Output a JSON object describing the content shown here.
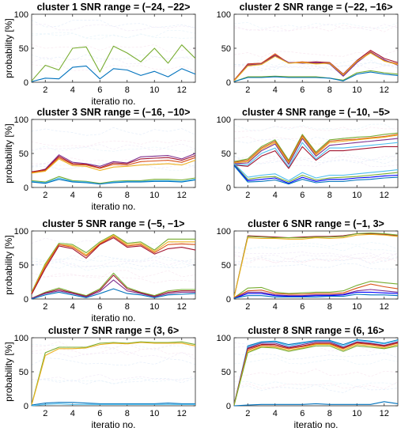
{
  "colors": {
    "blue": "#0072bd",
    "orange": "#d95319",
    "yellow": "#edb120",
    "purple": "#7e2f8e",
    "green": "#77ac30",
    "cyan": "#4dbeee",
    "maroon": "#a2142f",
    "navy": "#0000ff",
    "faint": "#dfe8f5"
  },
  "chart_data": [
    {
      "type": "line",
      "title": "cluster 1 SNR range = (−24, −22>",
      "xlabel": "iteratio no.",
      "ylabel": "probability [%]",
      "xlim": [
        1,
        13
      ],
      "ylim": [
        0,
        100
      ],
      "x_ticks": [
        "2",
        "4",
        "6",
        "8",
        "10",
        "12"
      ],
      "y_ticks": [
        "0",
        "50",
        "100"
      ],
      "series": [
        {
          "color": "#77ac30",
          "values": [
            2,
            25,
            18,
            50,
            52,
            15,
            53,
            43,
            30,
            50,
            28,
            55,
            35
          ]
        },
        {
          "color": "#0072bd",
          "values": [
            1,
            6,
            5,
            22,
            24,
            5,
            20,
            18,
            10,
            16,
            8,
            20,
            12
          ]
        }
      ]
    },
    {
      "type": "line",
      "title": "cluster 2 SNR range = (−22, −16>",
      "xlabel": "",
      "ylabel": "",
      "xlim": [
        1,
        13
      ],
      "ylim": [
        0,
        100
      ],
      "x_ticks": [
        "2",
        "4",
        "6",
        "8",
        "10",
        "12"
      ],
      "y_ticks": [
        "0",
        "50",
        "100"
      ],
      "series": [
        {
          "color": "#a2142f",
          "values": [
            3,
            27,
            28,
            40,
            29,
            29,
            30,
            29,
            12,
            32,
            47,
            35,
            29
          ]
        },
        {
          "color": "#d95319",
          "values": [
            3,
            26,
            28,
            42,
            28,
            30,
            28,
            28,
            10,
            30,
            45,
            32,
            27
          ]
        },
        {
          "color": "#7e2f8e",
          "values": [
            2,
            25,
            27,
            39,
            29,
            28,
            29,
            27,
            9,
            29,
            44,
            33,
            25
          ]
        },
        {
          "color": "#edb120",
          "values": [
            2,
            24,
            26,
            38,
            28,
            29,
            27,
            28,
            11,
            31,
            43,
            31,
            26
          ]
        },
        {
          "color": "#77ac30",
          "values": [
            1,
            8,
            8,
            9,
            8,
            8,
            8,
            6,
            3,
            14,
            17,
            14,
            12
          ]
        },
        {
          "color": "#0072bd",
          "values": [
            1,
            7,
            7,
            8,
            7,
            7,
            7,
            6,
            2,
            12,
            15,
            12,
            10
          ]
        }
      ]
    },
    {
      "type": "line",
      "title": "cluster 3 SNR range = (−16, −10>",
      "xlabel": "iteratio no.",
      "ylabel": "probability [%]",
      "xlim": [
        1,
        13
      ],
      "ylim": [
        0,
        100
      ],
      "x_ticks": [
        "2",
        "4",
        "6",
        "8",
        "10",
        "12"
      ],
      "y_ticks": [
        "0",
        "50",
        "100"
      ],
      "series": [
        {
          "color": "#7e2f8e",
          "values": [
            22,
            27,
            48,
            37,
            35,
            31,
            38,
            36,
            45,
            46,
            47,
            42,
            50
          ]
        },
        {
          "color": "#a2142f",
          "values": [
            23,
            26,
            46,
            35,
            34,
            29,
            36,
            35,
            42,
            43,
            44,
            40,
            47
          ]
        },
        {
          "color": "#d95319",
          "values": [
            22,
            25,
            44,
            34,
            33,
            28,
            34,
            33,
            38,
            39,
            40,
            37,
            44
          ]
        },
        {
          "color": "#edb120",
          "values": [
            21,
            24,
            42,
            32,
            31,
            25,
            30,
            31,
            33,
            34,
            35,
            33,
            40
          ]
        },
        {
          "color": "#77ac30",
          "values": [
            10,
            8,
            16,
            10,
            9,
            6,
            9,
            10,
            10,
            12,
            12,
            11,
            14
          ]
        },
        {
          "color": "#4dbeee",
          "values": [
            9,
            7,
            14,
            9,
            8,
            5,
            8,
            9,
            9,
            10,
            10,
            9,
            12
          ]
        },
        {
          "color": "#0072bd",
          "values": [
            8,
            6,
            12,
            8,
            7,
            5,
            7,
            8,
            8,
            9,
            9,
            8,
            11
          ]
        }
      ]
    },
    {
      "type": "line",
      "title": "cluster 4 SNR range = (−10, −5>",
      "xlabel": "",
      "ylabel": "",
      "xlim": [
        1,
        13
      ],
      "ylim": [
        0,
        100
      ],
      "x_ticks": [
        "2",
        "4",
        "6",
        "8",
        "10",
        "12"
      ],
      "y_ticks": [
        "0",
        "50",
        "100"
      ],
      "series": [
        {
          "color": "#77ac30",
          "values": [
            38,
            42,
            60,
            70,
            40,
            78,
            52,
            70,
            72,
            74,
            75,
            78,
            80
          ]
        },
        {
          "color": "#d95319",
          "values": [
            37,
            40,
            58,
            68,
            38,
            76,
            50,
            68,
            70,
            71,
            73,
            75,
            78
          ]
        },
        {
          "color": "#edb120",
          "values": [
            36,
            38,
            56,
            66,
            36,
            74,
            48,
            66,
            68,
            70,
            72,
            74,
            77
          ]
        },
        {
          "color": "#7e2f8e",
          "values": [
            35,
            36,
            54,
            64,
            34,
            72,
            46,
            62,
            64,
            66,
            68,
            70,
            72
          ]
        },
        {
          "color": "#4dbeee",
          "values": [
            34,
            33,
            50,
            58,
            30,
            66,
            42,
            58,
            58,
            60,
            62,
            64,
            66
          ]
        },
        {
          "color": "#a2142f",
          "values": [
            33,
            31,
            46,
            54,
            28,
            60,
            40,
            54,
            54,
            56,
            58,
            60,
            60
          ]
        },
        {
          "color": "#4dbeee",
          "values": [
            35,
            15,
            18,
            20,
            10,
            22,
            14,
            18,
            18,
            20,
            22,
            24,
            26
          ]
        },
        {
          "color": "#77ac30",
          "values": [
            34,
            12,
            15,
            16,
            8,
            18,
            11,
            14,
            15,
            16,
            18,
            20,
            22
          ]
        },
        {
          "color": "#0000ff",
          "values": [
            33,
            10,
            12,
            14,
            6,
            15,
            9,
            12,
            12,
            14,
            15,
            17,
            18
          ]
        },
        {
          "color": "#0072bd",
          "values": [
            32,
            8,
            9,
            11,
            5,
            12,
            7,
            9,
            9,
            11,
            12,
            14,
            15
          ]
        }
      ]
    },
    {
      "type": "line",
      "title": "cluster 5 SNR range = (−5, −1>",
      "xlabel": "iteratio no.",
      "ylabel": "probability [%]",
      "xlim": [
        1,
        13
      ],
      "ylim": [
        0,
        100
      ],
      "x_ticks": [
        "2",
        "4",
        "6",
        "8",
        "10",
        "12"
      ],
      "y_ticks": [
        "0",
        "50",
        "100"
      ],
      "series": [
        {
          "color": "#77ac30",
          "values": [
            10,
            52,
            82,
            80,
            68,
            84,
            95,
            82,
            84,
            72,
            88,
            88,
            88
          ]
        },
        {
          "color": "#edb120",
          "values": [
            9,
            50,
            80,
            78,
            65,
            82,
            94,
            80,
            82,
            70,
            84,
            84,
            84
          ]
        },
        {
          "color": "#d95319",
          "values": [
            8,
            48,
            80,
            76,
            63,
            81,
            92,
            78,
            80,
            68,
            80,
            81,
            80
          ]
        },
        {
          "color": "#a2142f",
          "values": [
            7,
            45,
            78,
            74,
            60,
            80,
            90,
            76,
            78,
            66,
            74,
            76,
            72
          ]
        },
        {
          "color": "#77ac30",
          "values": [
            1,
            10,
            16,
            10,
            5,
            15,
            38,
            17,
            10,
            5,
            12,
            14,
            14
          ]
        },
        {
          "color": "#a2142f",
          "values": [
            1,
            9,
            14,
            9,
            4,
            13,
            35,
            15,
            9,
            4,
            10,
            12,
            12
          ]
        },
        {
          "color": "#7e2f8e",
          "values": [
            1,
            8,
            12,
            8,
            3,
            11,
            28,
            12,
            8,
            3,
            8,
            10,
            10
          ]
        },
        {
          "color": "#0072bd",
          "values": [
            0,
            6,
            10,
            6,
            2,
            8,
            15,
            8,
            6,
            2,
            6,
            7,
            8
          ]
        }
      ]
    },
    {
      "type": "line",
      "title": "cluster 6 SNR range = (−1, 3>",
      "xlabel": "",
      "ylabel": "",
      "xlim": [
        1,
        13
      ],
      "ylim": [
        0,
        100
      ],
      "x_ticks": [
        "2",
        "4",
        "6",
        "8",
        "10",
        "12"
      ],
      "y_ticks": [
        "0",
        "50",
        "100"
      ],
      "series": [
        {
          "color": "#a2142f",
          "values": [
            3,
            93,
            92,
            91,
            90,
            91,
            92,
            92,
            93,
            96,
            96,
            95,
            93
          ]
        },
        {
          "color": "#77ac30",
          "values": [
            3,
            92,
            91,
            90,
            90,
            90,
            91,
            91,
            92,
            96,
            97,
            96,
            94
          ]
        },
        {
          "color": "#edb120",
          "values": [
            3,
            90,
            89,
            89,
            88,
            88,
            90,
            89,
            90,
            94,
            95,
            94,
            92
          ]
        },
        {
          "color": "#77ac30",
          "values": [
            2,
            16,
            17,
            10,
            8,
            9,
            10,
            10,
            12,
            20,
            26,
            24,
            22
          ]
        },
        {
          "color": "#d95319",
          "values": [
            2,
            12,
            13,
            8,
            7,
            7,
            8,
            8,
            9,
            16,
            22,
            18,
            15
          ]
        },
        {
          "color": "#7e2f8e",
          "values": [
            1,
            10,
            10,
            6,
            5,
            5,
            6,
            6,
            7,
            12,
            14,
            12,
            10
          ]
        },
        {
          "color": "#0000ff",
          "values": [
            1,
            8,
            8,
            5,
            4,
            4,
            5,
            5,
            6,
            10,
            10,
            9,
            8
          ]
        },
        {
          "color": "#0072bd",
          "values": [
            1,
            5,
            5,
            3,
            3,
            3,
            3,
            4,
            4,
            7,
            6,
            6,
            5
          ]
        }
      ]
    },
    {
      "type": "line",
      "title": "cluster 7 SNR range = (3, 6>",
      "xlabel": "iteratio no.",
      "ylabel": "probability [%]",
      "xlim": [
        1,
        13
      ],
      "ylim": [
        0,
        100
      ],
      "x_ticks": [
        "2",
        "4",
        "6",
        "8",
        "10",
        "12"
      ],
      "y_ticks": [
        "0",
        "50",
        "100"
      ],
      "series": [
        {
          "color": "#77ac30",
          "values": [
            2,
            78,
            86,
            86,
            86,
            92,
            93,
            92,
            94,
            93,
            93,
            94,
            90
          ]
        },
        {
          "color": "#edb120",
          "values": [
            1,
            74,
            84,
            84,
            85,
            90,
            92,
            91,
            93,
            92,
            92,
            92,
            88
          ]
        },
        {
          "color": "#0072bd",
          "values": [
            1,
            4,
            5,
            5,
            4,
            3,
            3,
            3,
            3,
            3,
            4,
            3,
            3
          ]
        },
        {
          "color": "#4dbeee",
          "values": [
            0,
            2,
            3,
            2,
            2,
            2,
            2,
            2,
            2,
            2,
            2,
            2,
            2
          ]
        }
      ]
    },
    {
      "type": "line",
      "title": "cluster 8 SNR range = (6, 16>",
      "xlabel": "iteratio no.",
      "ylabel": "",
      "xlim": [
        1,
        13
      ],
      "ylim": [
        0,
        100
      ],
      "x_ticks": [
        "2",
        "4",
        "6",
        "8",
        "10",
        "12"
      ],
      "y_ticks": [
        "0",
        "50",
        "100"
      ],
      "series": [
        {
          "color": "#0072bd",
          "values": [
            2,
            88,
            94,
            95,
            90,
            93,
            96,
            96,
            90,
            97,
            95,
            92,
            97
          ]
        },
        {
          "color": "#4dbeee",
          "values": [
            2,
            86,
            93,
            94,
            88,
            92,
            95,
            95,
            88,
            96,
            94,
            91,
            96
          ]
        },
        {
          "color": "#7e2f8e",
          "values": [
            2,
            85,
            92,
            92,
            86,
            90,
            94,
            94,
            86,
            94,
            92,
            89,
            94
          ]
        },
        {
          "color": "#a2142f",
          "values": [
            2,
            84,
            90,
            90,
            85,
            88,
            92,
            92,
            85,
            93,
            91,
            88,
            93
          ]
        },
        {
          "color": "#d95319",
          "values": [
            1,
            82,
            89,
            88,
            84,
            87,
            91,
            91,
            84,
            92,
            90,
            87,
            92
          ]
        },
        {
          "color": "#edb120",
          "values": [
            1,
            80,
            87,
            86,
            82,
            85,
            90,
            90,
            82,
            90,
            88,
            85,
            90
          ]
        },
        {
          "color": "#77ac30",
          "values": [
            1,
            78,
            86,
            85,
            80,
            84,
            88,
            88,
            80,
            88,
            86,
            84,
            88
          ]
        },
        {
          "color": "#0072bd",
          "values": [
            0,
            1,
            2,
            2,
            2,
            2,
            3,
            2,
            2,
            2,
            2,
            6,
            3
          ]
        }
      ]
    }
  ]
}
